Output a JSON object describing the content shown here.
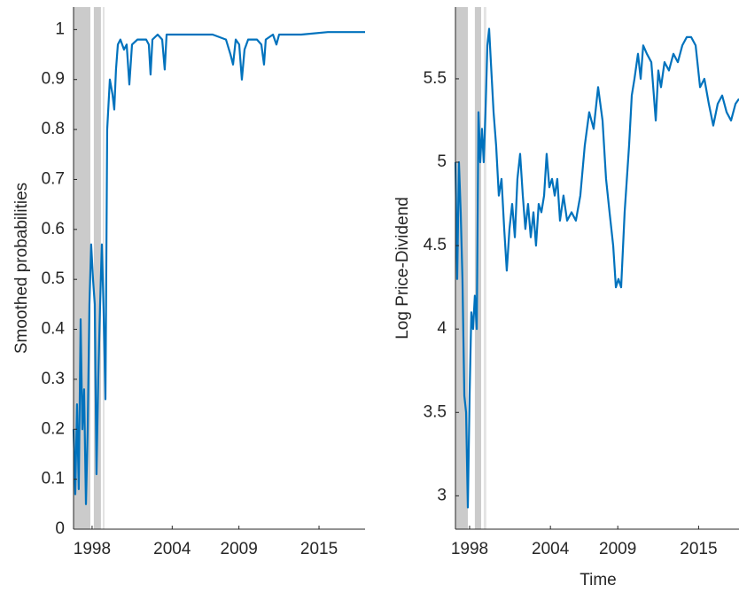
{
  "chart_data": [
    {
      "type": "line",
      "ylabel": "Smoothed probabilities",
      "color": "#0072bd",
      "xlim": [
        1996.61,
        2018.45
      ],
      "xticks": [
        1998,
        2004,
        2009,
        2015
      ],
      "ylim": [
        0,
        1.045
      ],
      "yticks": [
        0,
        0.1,
        0.2,
        0.3,
        0.4,
        0.5,
        0.6,
        0.7,
        0.8,
        0.9,
        1
      ],
      "shaded_regions": [
        [
          1996.61,
          1997.87
        ],
        [
          1998.13,
          1998.66
        ],
        [
          1998.8,
          1998.93
        ]
      ],
      "x": [
        1996.61,
        1996.74,
        1996.87,
        1997.0,
        1997.14,
        1997.27,
        1997.4,
        1997.54,
        1997.67,
        1997.8,
        1997.93,
        1998.07,
        1998.2,
        1998.33,
        1998.46,
        1998.6,
        1998.73,
        1998.86,
        1999.0,
        1999.13,
        1999.33,
        1999.53,
        1999.66,
        1999.79,
        1999.93,
        2000.12,
        2000.39,
        2000.59,
        2000.79,
        2000.99,
        2001.39,
        2001.72,
        2002.05,
        2002.25,
        2002.38,
        2002.52,
        2002.91,
        2003.25,
        2003.44,
        2003.58,
        2004.37,
        2005.7,
        2007.03,
        2008.03,
        2008.37,
        2008.56,
        2008.76,
        2009.02,
        2009.22,
        2009.42,
        2009.69,
        2010.35,
        2010.68,
        2010.88,
        2011.01,
        2011.55,
        2011.81,
        2012.01,
        2013.67,
        2015.66,
        2018.45
      ],
      "values": [
        0.2,
        0.07,
        0.25,
        0.08,
        0.42,
        0.2,
        0.28,
        0.05,
        0.2,
        0.45,
        0.57,
        0.5,
        0.45,
        0.11,
        0.3,
        0.45,
        0.57,
        0.44,
        0.26,
        0.8,
        0.9,
        0.87,
        0.84,
        0.92,
        0.97,
        0.98,
        0.96,
        0.97,
        0.89,
        0.97,
        0.98,
        0.98,
        0.98,
        0.97,
        0.91,
        0.98,
        0.99,
        0.98,
        0.92,
        0.99,
        0.99,
        0.99,
        0.99,
        0.98,
        0.95,
        0.93,
        0.98,
        0.97,
        0.9,
        0.96,
        0.98,
        0.98,
        0.97,
        0.93,
        0.98,
        0.99,
        0.97,
        0.99,
        0.99,
        0.995,
        0.995
      ]
    },
    {
      "type": "line",
      "ylabel": "Log Price-Dividend",
      "xlabel": "Time",
      "color": "#0072bd",
      "xlim": [
        1996.95,
        2018.0
      ],
      "xticks": [
        1998,
        2004,
        2009,
        2015
      ],
      "ylim": [
        2.8,
        5.93
      ],
      "yticks": [
        3,
        3.5,
        4,
        4.5,
        5,
        5.5
      ],
      "shaded_regions": [
        [
          1996.95,
          1997.87
        ],
        [
          1998.39,
          1998.86
        ],
        [
          1999.05,
          1999.24
        ]
      ],
      "x": [
        1996.95,
        1997.08,
        1997.21,
        1997.34,
        1997.47,
        1997.61,
        1997.74,
        1997.87,
        1998.0,
        1998.13,
        1998.26,
        1998.39,
        1998.53,
        1998.66,
        1998.79,
        1998.92,
        1999.05,
        1999.18,
        1999.32,
        1999.45,
        1999.58,
        1999.78,
        1999.97,
        2000.17,
        2000.37,
        2000.57,
        2000.76,
        2000.96,
        2001.16,
        2001.36,
        2001.55,
        2001.75,
        2001.95,
        2002.14,
        2002.34,
        2002.54,
        2002.74,
        2002.93,
        2003.13,
        2003.33,
        2003.53,
        2003.72,
        2003.92,
        2004.12,
        2004.32,
        2004.51,
        2004.71,
        2004.97,
        2005.24,
        2005.57,
        2005.89,
        2006.22,
        2006.55,
        2006.88,
        2007.21,
        2007.54,
        2007.87,
        2008.13,
        2008.39,
        2008.66,
        2008.86,
        2009.05,
        2009.25,
        2009.51,
        2009.84,
        2010.04,
        2010.24,
        2010.5,
        2010.7,
        2010.89,
        2011.16,
        2011.49,
        2011.82,
        2012.01,
        2012.21,
        2012.47,
        2012.8,
        2013.13,
        2013.46,
        2013.79,
        2014.12,
        2014.45,
        2014.78,
        2015.11,
        2015.43,
        2015.76,
        2016.09,
        2016.42,
        2016.75,
        2017.08,
        2017.41,
        2017.74,
        2018.0
      ],
      "values": [
        5.0,
        4.3,
        5.0,
        4.7,
        4.3,
        3.6,
        3.5,
        2.93,
        3.6,
        4.1,
        4.0,
        4.2,
        4.0,
        5.3,
        5.0,
        5.2,
        5.0,
        5.3,
        5.7,
        5.8,
        5.6,
        5.3,
        5.1,
        4.8,
        4.9,
        4.6,
        4.35,
        4.6,
        4.75,
        4.55,
        4.9,
        5.05,
        4.8,
        4.6,
        4.75,
        4.55,
        4.7,
        4.5,
        4.75,
        4.7,
        4.8,
        5.05,
        4.85,
        4.9,
        4.8,
        4.9,
        4.65,
        4.8,
        4.65,
        4.7,
        4.65,
        4.8,
        5.1,
        5.3,
        5.2,
        5.45,
        5.25,
        4.9,
        4.7,
        4.5,
        4.25,
        4.3,
        4.25,
        4.7,
        5.1,
        5.4,
        5.5,
        5.65,
        5.5,
        5.7,
        5.65,
        5.6,
        5.25,
        5.55,
        5.45,
        5.6,
        5.55,
        5.65,
        5.6,
        5.7,
        5.75,
        5.75,
        5.7,
        5.45,
        5.5,
        5.35,
        5.22,
        5.35,
        5.4,
        5.3,
        5.25,
        5.35,
        5.38
      ]
    }
  ]
}
